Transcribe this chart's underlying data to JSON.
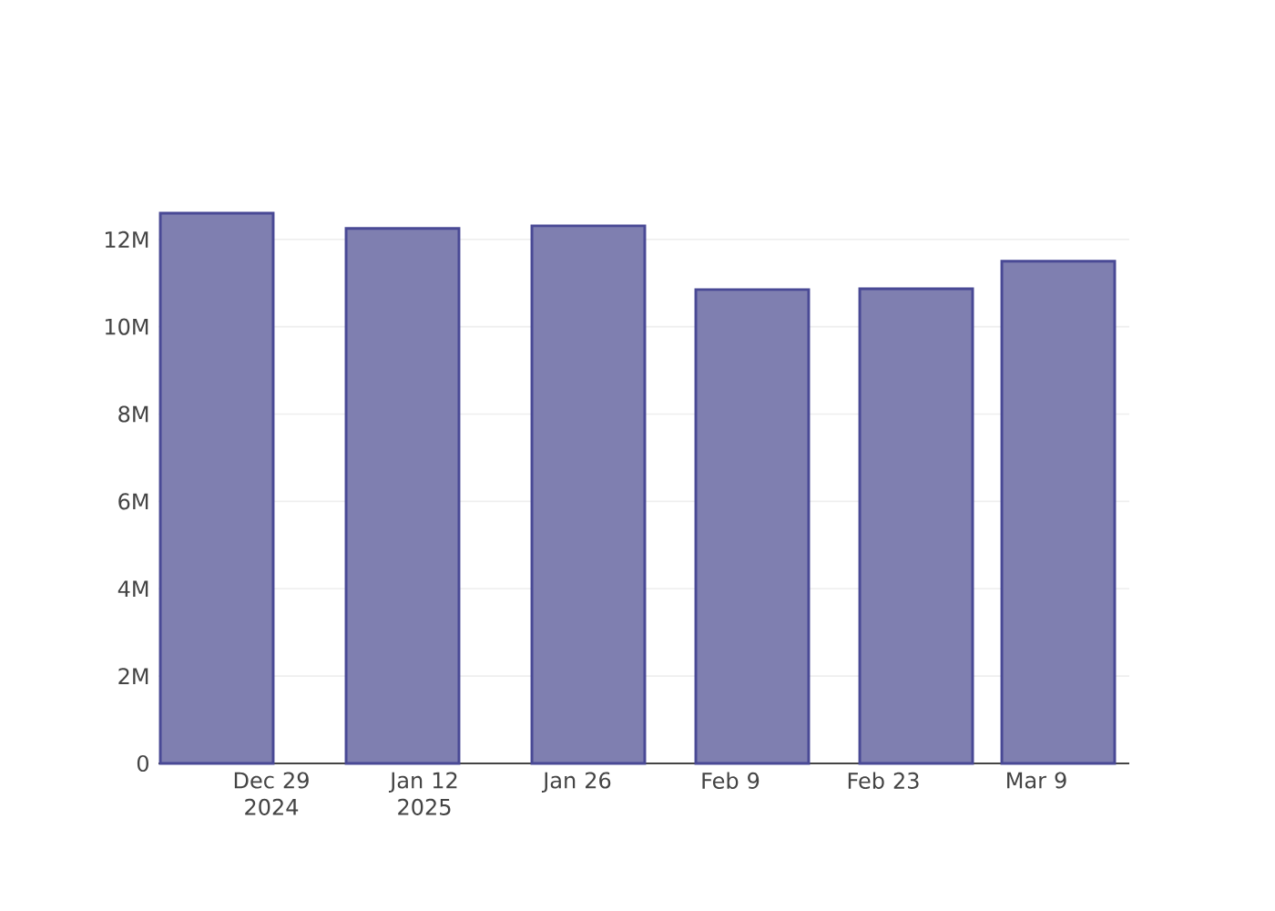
{
  "chart_data": {
    "type": "bar",
    "x": [
      "2024-12-24",
      "2025-01-10",
      "2025-01-27",
      "2025-02-11",
      "2025-02-26",
      "2025-03-11"
    ],
    "values": [
      12600000,
      12250000,
      12310000,
      10850000,
      10870000,
      11500000
    ],
    "color": "#7f7fb0",
    "xlim": [
      "2024-12-18T16:00",
      "2025-03-17T12:00"
    ],
    "xticks": [
      {
        "value": "2024-12-29",
        "label": "Dec 29 2024"
      },
      {
        "value": "2025-01-12",
        "label": "Jan 12 2025"
      },
      {
        "value": "2025-01-26",
        "label": "Jan 26"
      },
      {
        "value": "2025-02-09",
        "label": "Feb 9"
      },
      {
        "value": "2025-02-23",
        "label": "Feb 23"
      },
      {
        "value": "2025-03-09",
        "label": "Mar 9"
      }
    ],
    "ylim": [
      0,
      12600000
    ],
    "yticks": [
      0,
      {
        "value": 2000000,
        "label": "2M"
      },
      {
        "value": 4000000,
        "label": "4M"
      },
      {
        "value": 6000000,
        "label": "6M"
      },
      {
        "value": 8000000,
        "label": "8M"
      },
      {
        "value": 10000000,
        "label": "10M"
      },
      {
        "value": 12000000,
        "label": "12M"
      }
    ],
    "grid": "y"
  }
}
